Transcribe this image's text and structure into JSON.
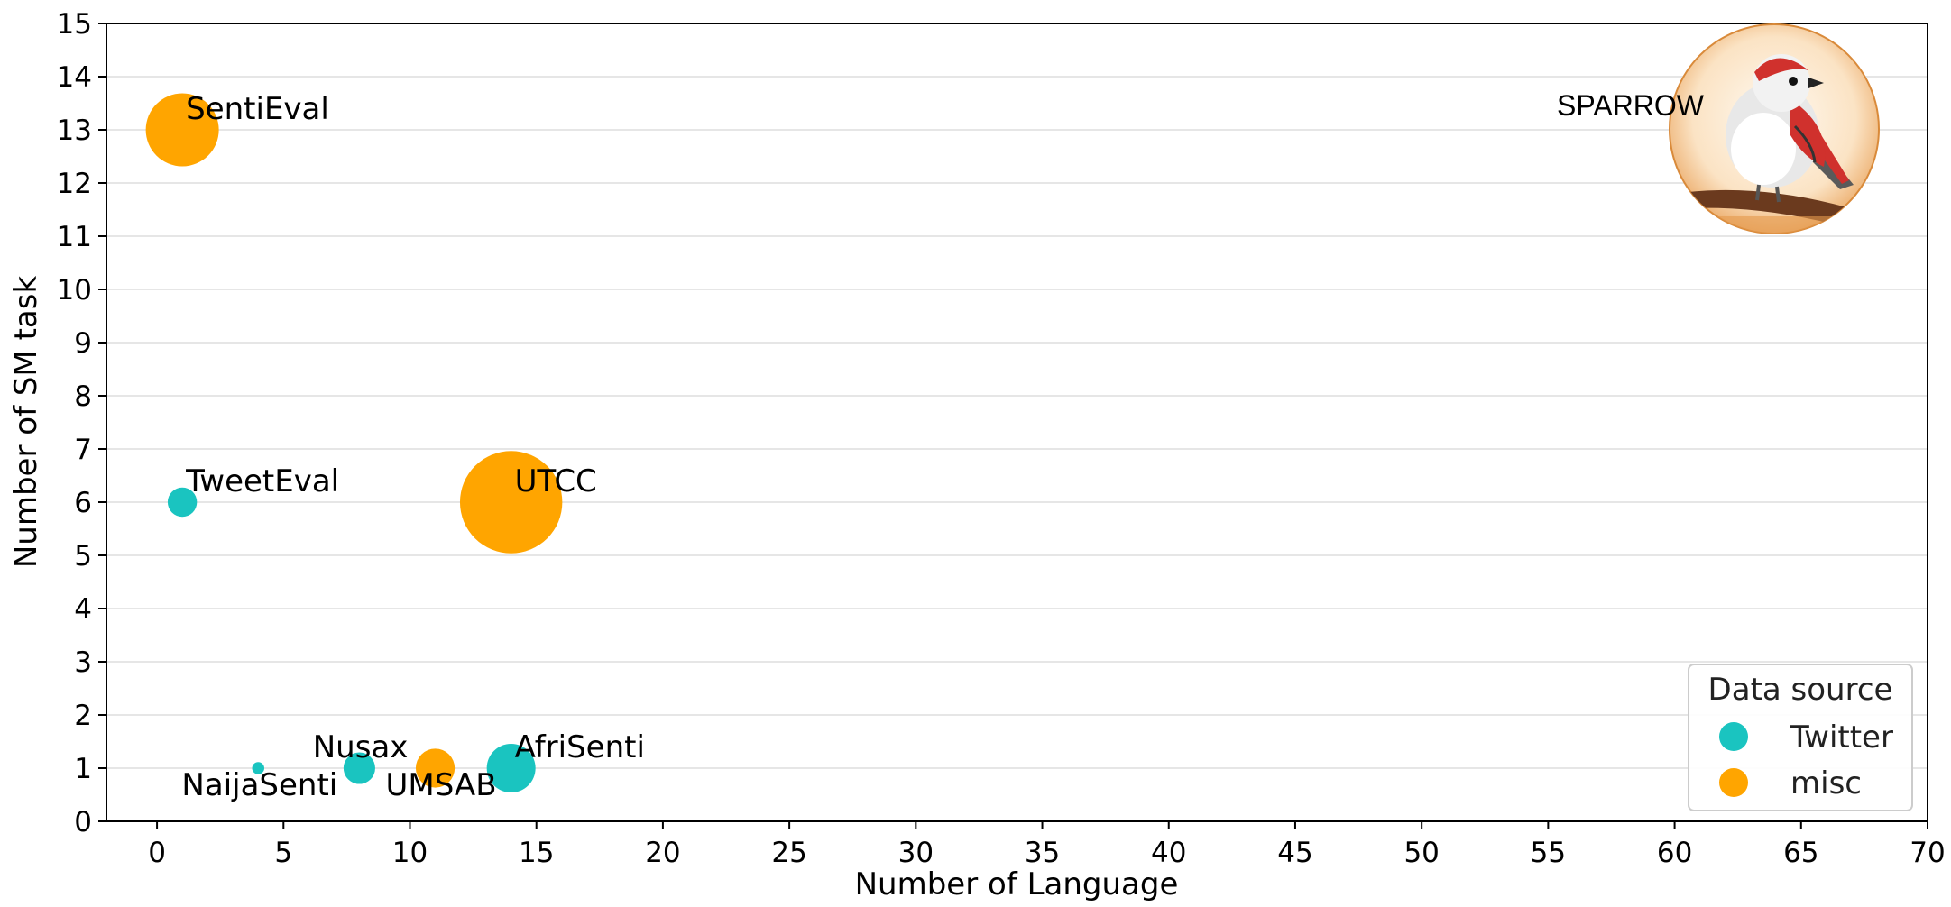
{
  "chart_data": {
    "type": "scatter",
    "xlabel": "Number of Language",
    "ylabel": "Number of SM task",
    "xlim": [
      -2,
      70
    ],
    "ylim": [
      0,
      15
    ],
    "xticks": [
      0,
      5,
      10,
      15,
      20,
      25,
      30,
      35,
      40,
      45,
      50,
      55,
      60,
      65,
      70
    ],
    "yticks": [
      0,
      1,
      2,
      3,
      4,
      5,
      6,
      7,
      8,
      9,
      10,
      11,
      12,
      13,
      14,
      15
    ],
    "grid": "horizontal",
    "legend": {
      "title": "Data source",
      "placement": "bottom-right",
      "entries": [
        {
          "name": "Twitter",
          "color": "#1ac4c0"
        },
        {
          "name": "misc",
          "color": "#ffa500"
        }
      ]
    },
    "points": [
      {
        "label": "SentiEval",
        "x": 1,
        "y": 13,
        "source": "misc",
        "size": 3
      },
      {
        "label": "TweetEval",
        "x": 1,
        "y": 6,
        "source": "Twitter",
        "size": 1.2
      },
      {
        "label": "UTCC",
        "x": 14,
        "y": 6,
        "source": "misc",
        "size": 4.2
      },
      {
        "label": "NaijaSenti",
        "x": 4,
        "y": 1,
        "source": "Twitter",
        "size": 0.5
      },
      {
        "label": "Nusax",
        "x": 8,
        "y": 1,
        "source": "Twitter",
        "size": 1.3
      },
      {
        "label": "UMSAB",
        "x": 11,
        "y": 1,
        "source": "misc",
        "size": 1.6
      },
      {
        "label": "AfriSenti",
        "x": 14,
        "y": 1,
        "source": "Twitter",
        "size": 2.0
      }
    ],
    "highlight": {
      "label": "SPARROW",
      "x": 64,
      "y": 13
    }
  }
}
